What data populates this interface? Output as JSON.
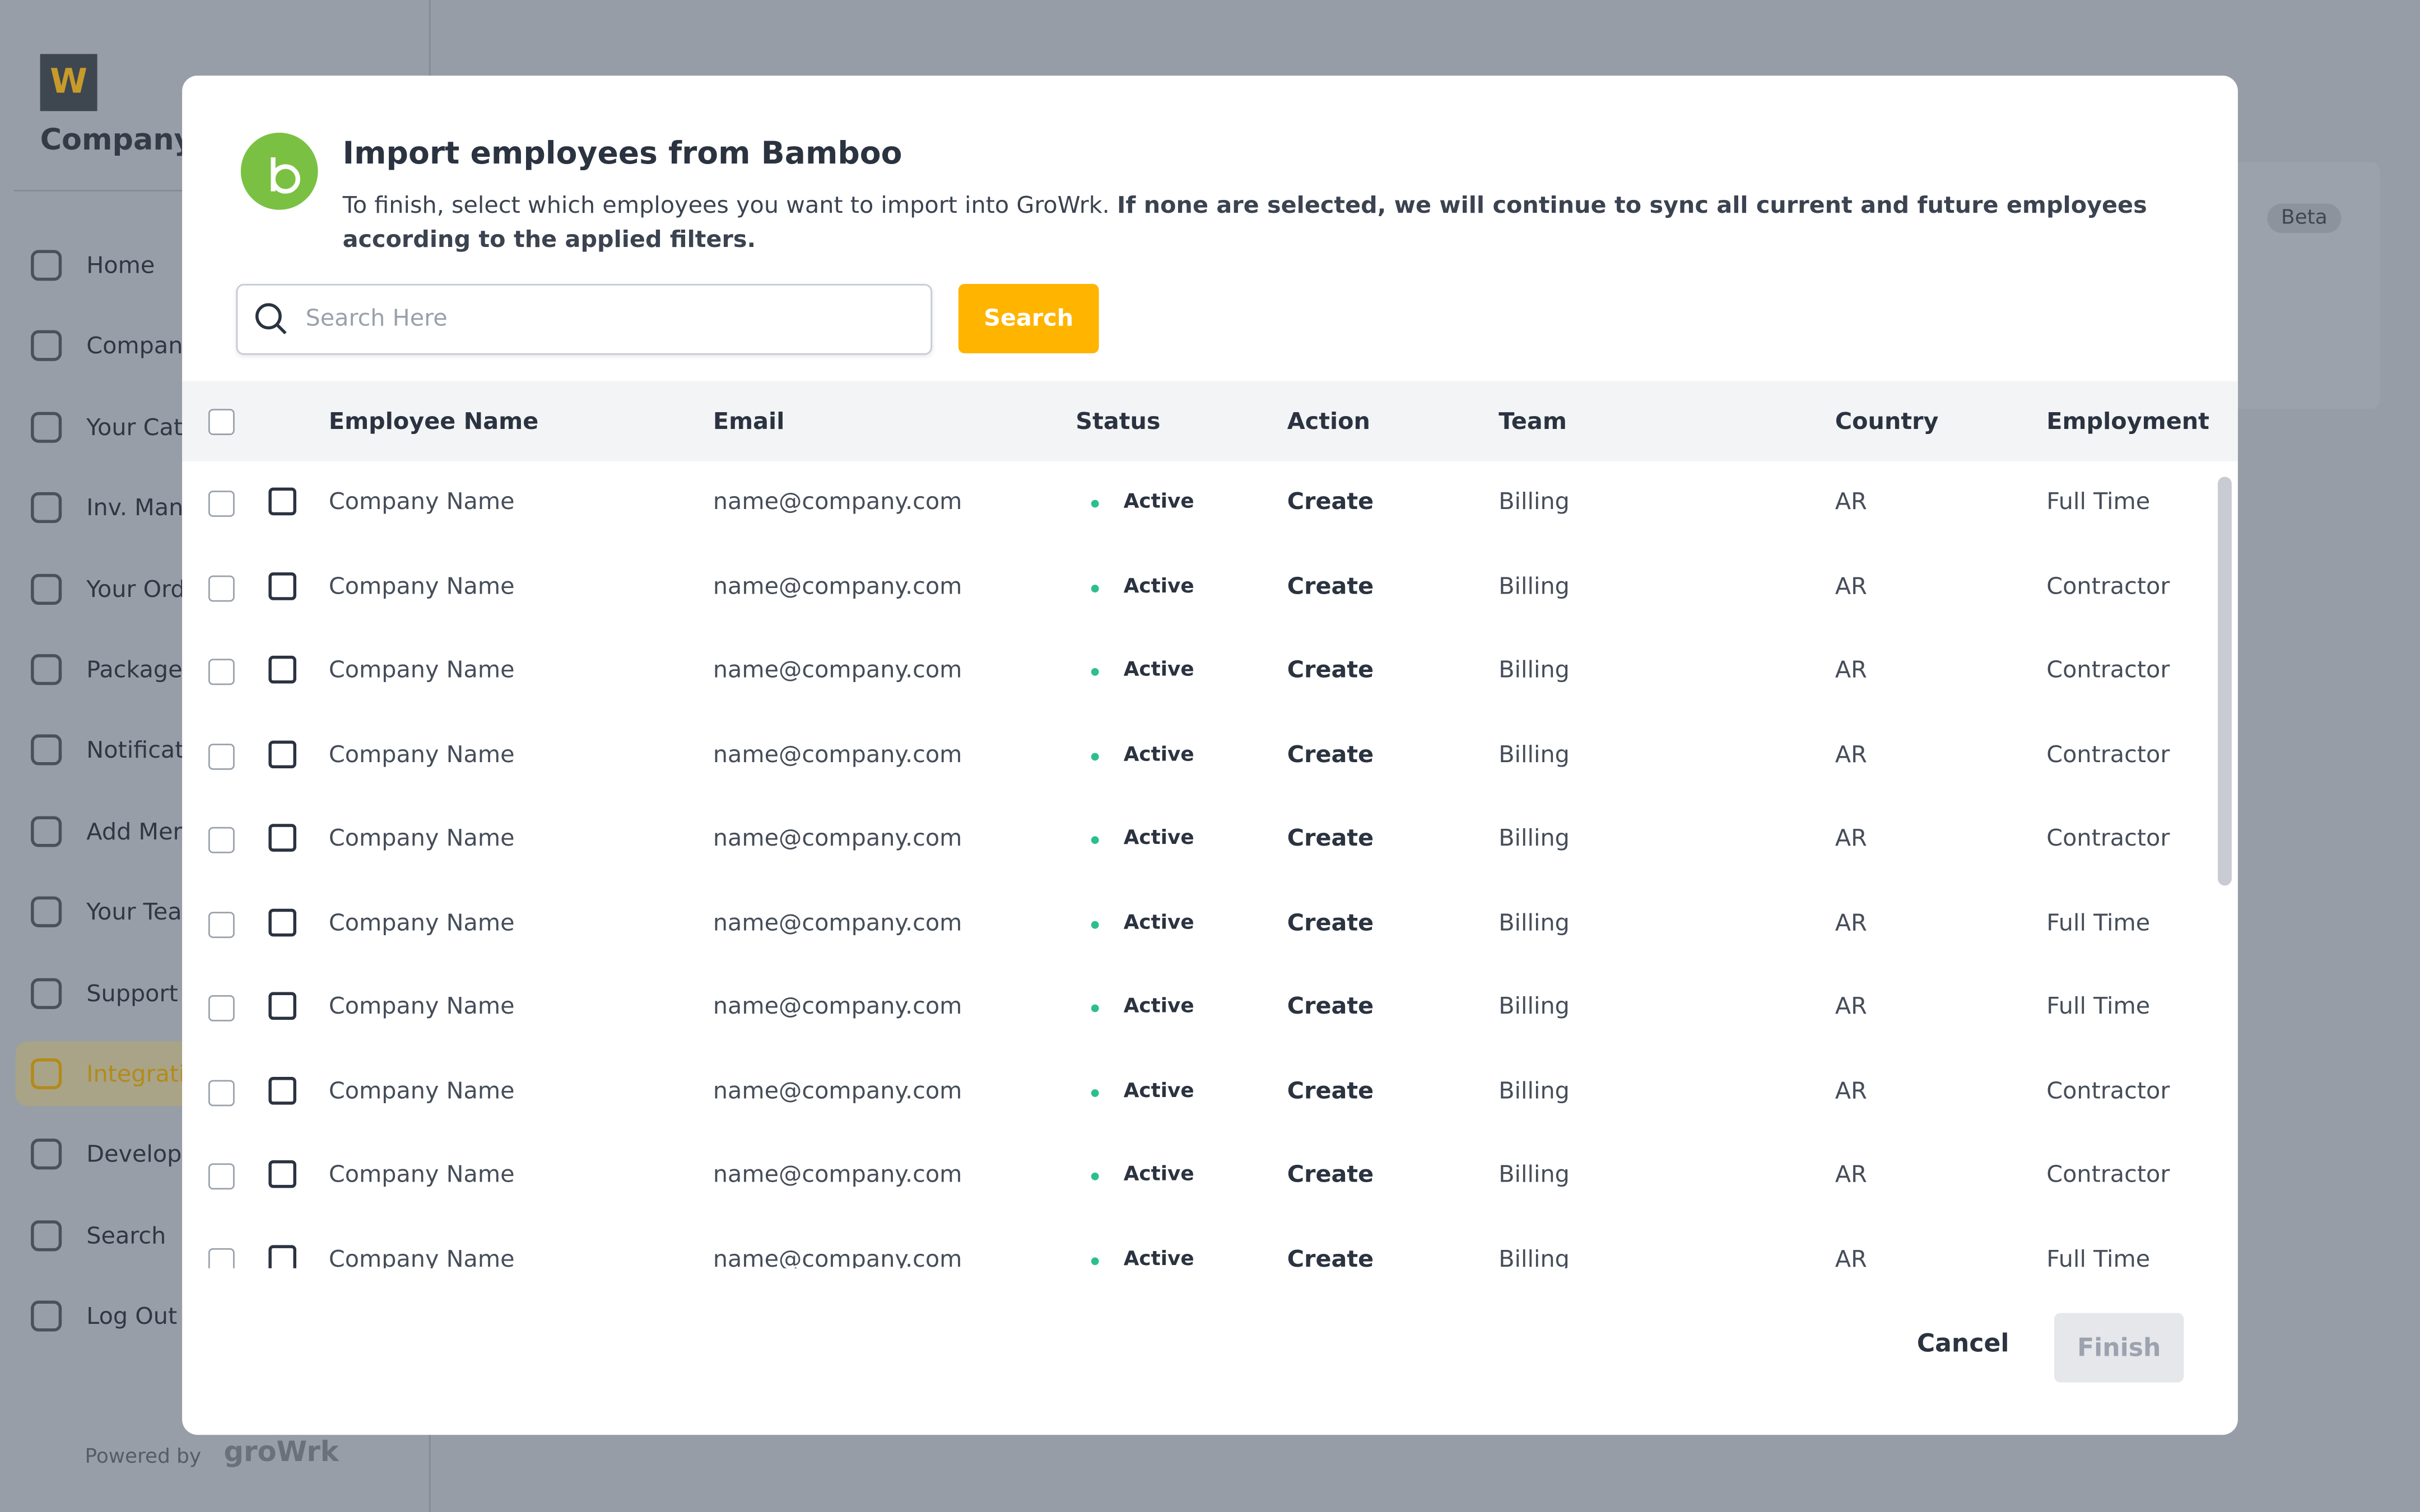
{
  "sidebar": {
    "company": "Company N",
    "nav": [
      "Home",
      "Company",
      "Your Cat",
      "Inv. Man",
      "Your Ord",
      "Packages",
      "Notificat",
      "Add Mem",
      "Your Tea",
      "Support",
      "Integrati",
      "Develope",
      "Search",
      "Log Out"
    ],
    "active": 10,
    "powered_by": "Powered by",
    "brand": "groWrk"
  },
  "page": {
    "badge": "Beta"
  },
  "modal": {
    "title": "Import employees from Bamboo",
    "description": "To finish, select which employees you want to import into GroWrk.",
    "description_bold": "If none are selected, we will continue to sync all current and future employees according to the applied filters.",
    "search_placeholder": "Search Here",
    "search_button": "Search",
    "table": {
      "columns": [
        "Employee Name",
        "Email",
        "Status",
        "Action",
        "Team",
        "Country",
        "Employment"
      ],
      "rows": [
        [
          "Company Name",
          "name@company.com",
          "Active",
          "Create",
          "Billing",
          "AR",
          "Full Time"
        ],
        [
          "Company Name",
          "name@company.com",
          "Active",
          "Create",
          "Billing",
          "AR",
          "Contractor"
        ],
        [
          "Company Name",
          "name@company.com",
          "Active",
          "Create",
          "Billing",
          "AR",
          "Contractor"
        ],
        [
          "Company Name",
          "name@company.com",
          "Active",
          "Create",
          "Billing",
          "AR",
          "Contractor"
        ],
        [
          "Company Name",
          "name@company.com",
          "Active",
          "Create",
          "Billing",
          "AR",
          "Contractor"
        ],
        [
          "Company Name",
          "name@company.com",
          "Active",
          "Create",
          "Billing",
          "AR",
          "Full Time"
        ],
        [
          "Company Name",
          "name@company.com",
          "Active",
          "Create",
          "Billing",
          "AR",
          "Full Time"
        ],
        [
          "Company Name",
          "name@company.com",
          "Active",
          "Create",
          "Billing",
          "AR",
          "Contractor"
        ],
        [
          "Company Name",
          "name@company.com",
          "Active",
          "Create",
          "Billing",
          "AR",
          "Contractor"
        ],
        [
          "Company Name",
          "name@company.com",
          "Active",
          "Create",
          "Billing",
          "AR",
          "Full Time"
        ]
      ]
    },
    "cancel": "Cancel",
    "finish": "Finish"
  }
}
